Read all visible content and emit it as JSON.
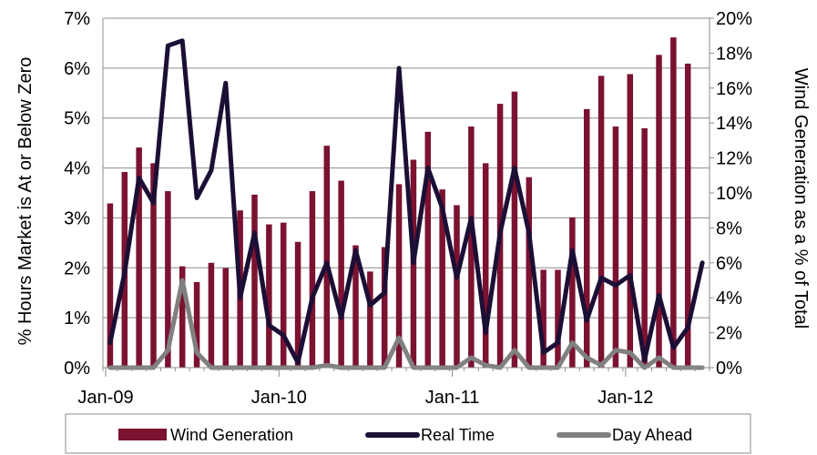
{
  "chart_data": {
    "type": "bar",
    "y_left_label": "% Hours Market is At or Below Zero",
    "y_right_label": "Wind Generation as a % of Total",
    "y_left_ticks": [
      "0%",
      "1%",
      "2%",
      "3%",
      "4%",
      "5%",
      "6%",
      "7%"
    ],
    "y_right_ticks": [
      "0%",
      "2%",
      "4%",
      "6%",
      "8%",
      "10%",
      "12%",
      "14%",
      "16%",
      "18%",
      "20%"
    ],
    "x_tick_labels": [
      "Jan-09",
      "Jan-10",
      "Jan-11",
      "Jan-12"
    ],
    "y_left_range": [
      0,
      7
    ],
    "y_right_range": [
      0,
      20
    ],
    "grid": "horizontal",
    "legend_position": "bottom",
    "months": [
      "Jan-09",
      "Feb-09",
      "Mar-09",
      "Apr-09",
      "May-09",
      "Jun-09",
      "Jul-09",
      "Aug-09",
      "Sep-09",
      "Oct-09",
      "Nov-09",
      "Dec-09",
      "Jan-10",
      "Feb-10",
      "Mar-10",
      "Apr-10",
      "May-10",
      "Jun-10",
      "Jul-10",
      "Aug-10",
      "Sep-10",
      "Oct-10",
      "Nov-10",
      "Dec-10",
      "Jan-11",
      "Feb-11",
      "Mar-11",
      "Apr-11",
      "May-11",
      "Jun-11",
      "Jul-11",
      "Aug-11",
      "Sep-11",
      "Oct-11",
      "Nov-11",
      "Dec-11",
      "Jan-12",
      "Feb-12",
      "Mar-12",
      "Apr-12",
      "May-12",
      "Jun-12"
    ],
    "series": [
      {
        "name": "Wind Generation",
        "axis": "right",
        "style": "bar",
        "color": "#7b1230",
        "values": [
          9.4,
          11.2,
          12.6,
          11.7,
          10.1,
          5.8,
          4.9,
          6.0,
          5.7,
          9.0,
          9.9,
          8.2,
          8.3,
          7.2,
          10.1,
          12.7,
          10.7,
          7.0,
          5.5,
          6.9,
          10.5,
          11.9,
          13.5,
          10.2,
          9.3,
          13.8,
          11.7,
          15.1,
          15.8,
          10.9,
          5.6,
          5.6,
          8.6,
          14.8,
          16.7,
          13.8,
          16.8,
          13.7,
          17.9,
          18.9,
          17.4,
          0
        ]
      },
      {
        "name": "Real Time",
        "axis": "left",
        "style": "line",
        "color": "#1c0f36",
        "values": [
          0.5,
          1.9,
          3.8,
          3.3,
          6.45,
          6.55,
          3.4,
          3.95,
          5.7,
          1.4,
          2.7,
          0.85,
          0.65,
          0.1,
          1.4,
          2.1,
          1.0,
          2.35,
          1.25,
          1.5,
          6.0,
          2.1,
          4.0,
          3.2,
          1.8,
          3.0,
          0.7,
          2.7,
          4.0,
          2.7,
          0.3,
          0.5,
          2.35,
          0.95,
          1.8,
          1.65,
          1.85,
          0.15,
          1.45,
          0.4,
          0.8,
          2.1
        ]
      },
      {
        "name": "Day Ahead",
        "axis": "left",
        "style": "line",
        "color": "#808080",
        "values": [
          0,
          0,
          0,
          0,
          0.35,
          1.75,
          0.3,
          0,
          0,
          0,
          0,
          0,
          0,
          0,
          0,
          0.05,
          0,
          0,
          0,
          0,
          0.6,
          0,
          0,
          0,
          0,
          0.2,
          0.05,
          0,
          0.35,
          0,
          0,
          0,
          0.5,
          0.2,
          0.05,
          0.35,
          0.3,
          0,
          0.2,
          0,
          0,
          0
        ]
      }
    ]
  }
}
